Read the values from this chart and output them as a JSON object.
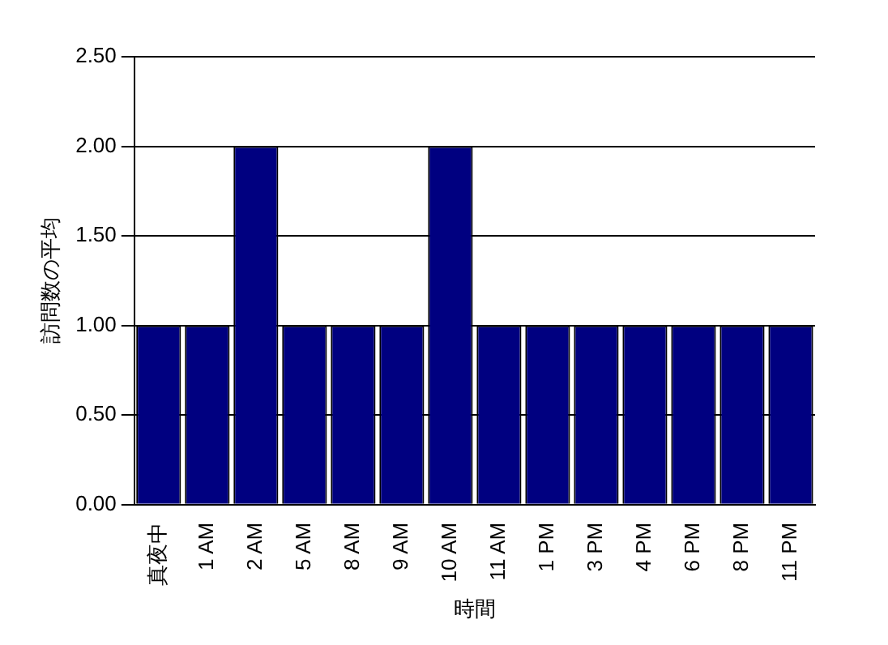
{
  "chart_data": {
    "type": "bar",
    "xlabel": "時間",
    "ylabel": "訪問数の平均",
    "categories": [
      "真夜中",
      "1 AM",
      "2 AM",
      "5 AM",
      "8 AM",
      "9 AM",
      "10 AM",
      "11 AM",
      "1 PM",
      "3 PM",
      "4 PM",
      "6 PM",
      "8 PM",
      "11 PM"
    ],
    "values": [
      1,
      1,
      2,
      1,
      1,
      1,
      2,
      1,
      1,
      1,
      1,
      1,
      1,
      1
    ],
    "color": "#000080",
    "ylim": [
      0,
      2.5
    ],
    "yticks": [
      {
        "value": 0,
        "label": "0.00"
      },
      {
        "value": 0.5,
        "label": "0.50"
      },
      {
        "value": 1,
        "label": "1.00"
      },
      {
        "value": 1.5,
        "label": "1.50"
      },
      {
        "value": 2,
        "label": "2.00"
      },
      {
        "value": 2.5,
        "label": "2.50"
      }
    ],
    "grid": "y"
  }
}
